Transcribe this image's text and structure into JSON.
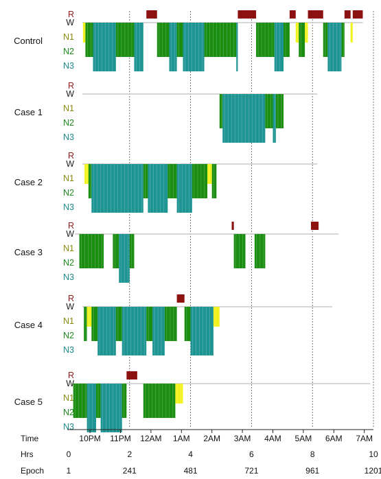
{
  "chart_data": {
    "type": "hypnogram",
    "stage_labels": [
      "R",
      "W",
      "N1",
      "N2",
      "N3"
    ],
    "stage_colors": {
      "R": "#8b1a1a",
      "W": "#222222",
      "N1": "#8a8a10",
      "N2": "#1c8a1c",
      "N3": "#1e8a8a",
      "N1_bar": "#f2f21e",
      "N2_bar": "#1b8e12",
      "N3_bar": "#1f9593",
      "R_bar": "#8c1111"
    },
    "x_axes": {
      "time": {
        "label": "Time",
        "ticks": [
          {
            "label": "10PM",
            "hr": 0.7
          },
          {
            "label": "11PM",
            "hr": 1.7
          },
          {
            "label": "12AM",
            "hr": 2.7
          },
          {
            "label": "1AM",
            "hr": 3.7
          },
          {
            "label": "2AM",
            "hr": 4.7
          },
          {
            "label": "3AM",
            "hr": 5.7
          },
          {
            "label": "4AM",
            "hr": 6.7
          },
          {
            "label": "5AM",
            "hr": 7.7
          },
          {
            "label": "6AM",
            "hr": 8.7
          },
          {
            "label": "7AM",
            "hr": 9.7
          }
        ]
      },
      "hrs": {
        "label": "Hrs",
        "ticks": [
          {
            "label": "0",
            "hr": 0
          },
          {
            "label": "2",
            "hr": 2
          },
          {
            "label": "4",
            "hr": 4
          },
          {
            "label": "6",
            "hr": 6
          },
          {
            "label": "8",
            "hr": 8
          },
          {
            "label": "10",
            "hr": 10
          }
        ]
      },
      "epoch": {
        "label": "Epoch",
        "ticks": [
          {
            "label": "1",
            "hr": 0
          },
          {
            "label": "241",
            "hr": 2
          },
          {
            "label": "481",
            "hr": 4
          },
          {
            "label": "721",
            "hr": 6
          },
          {
            "label": "961",
            "hr": 8
          },
          {
            "label": "1201",
            "hr": 10
          }
        ]
      }
    },
    "gridlines_hr": [
      2,
      4,
      6,
      8,
      10
    ],
    "panels": [
      {
        "name": "Control",
        "record_start_hr": 0.45,
        "record_end_hr": 9.65,
        "segments": [
          {
            "stage": "W",
            "start": 0.45,
            "end": 0.47
          },
          {
            "stage": "N1",
            "start": 0.47,
            "end": 0.55
          },
          {
            "stage": "N2",
            "start": 0.55,
            "end": 0.8
          },
          {
            "stage": "N3",
            "start": 0.8,
            "end": 1.55
          },
          {
            "stage": "N2",
            "start": 1.55,
            "end": 2.15
          },
          {
            "stage": "N3",
            "start": 2.15,
            "end": 2.45
          },
          {
            "stage": "R",
            "start": 2.55,
            "end": 2.9
          },
          {
            "stage": "N2",
            "start": 2.9,
            "end": 3.3
          },
          {
            "stage": "N3",
            "start": 3.3,
            "end": 3.55
          },
          {
            "stage": "N2",
            "start": 3.55,
            "end": 3.75
          },
          {
            "stage": "N3",
            "start": 3.75,
            "end": 4.45
          },
          {
            "stage": "N2",
            "start": 4.45,
            "end": 5.5
          },
          {
            "stage": "N3",
            "start": 5.5,
            "end": 5.55
          },
          {
            "stage": "R",
            "start": 5.55,
            "end": 6.15
          },
          {
            "stage": "N2",
            "start": 6.15,
            "end": 6.75
          },
          {
            "stage": "N3",
            "start": 6.75,
            "end": 7.05
          },
          {
            "stage": "N2",
            "start": 7.05,
            "end": 7.25
          },
          {
            "stage": "R",
            "start": 7.25,
            "end": 7.45
          },
          {
            "stage": "N1",
            "start": 7.45,
            "end": 7.55
          },
          {
            "stage": "N2",
            "start": 7.55,
            "end": 7.75
          },
          {
            "stage": "N1",
            "start": 7.75,
            "end": 7.85
          },
          {
            "stage": "R",
            "start": 7.85,
            "end": 8.35
          },
          {
            "stage": "N2",
            "start": 8.35,
            "end": 8.5
          },
          {
            "stage": "N3",
            "start": 8.5,
            "end": 8.95
          },
          {
            "stage": "N2",
            "start": 8.95,
            "end": 9.05
          },
          {
            "stage": "R",
            "start": 9.05,
            "end": 9.25
          },
          {
            "stage": "N1",
            "start": 9.25,
            "end": 9.32
          },
          {
            "stage": "R",
            "start": 9.32,
            "end": 9.65
          }
        ]
      },
      {
        "name": "Case 1",
        "record_start_hr": 0.45,
        "record_end_hr": 8.15,
        "segments": [
          {
            "stage": "W",
            "start": 0.45,
            "end": 4.95
          },
          {
            "stage": "N2",
            "start": 4.95,
            "end": 5.05
          },
          {
            "stage": "N3",
            "start": 5.05,
            "end": 6.45
          },
          {
            "stage": "N2",
            "start": 6.45,
            "end": 6.7
          },
          {
            "stage": "N3",
            "start": 6.7,
            "end": 6.8
          },
          {
            "stage": "N2",
            "start": 6.8,
            "end": 7.05
          },
          {
            "stage": "W",
            "start": 7.05,
            "end": 8.15
          }
        ]
      },
      {
        "name": "Case 2",
        "record_start_hr": 0.45,
        "record_end_hr": 8.15,
        "segments": [
          {
            "stage": "W",
            "start": 0.45,
            "end": 0.52
          },
          {
            "stage": "N1",
            "start": 0.52,
            "end": 0.65
          },
          {
            "stage": "N2",
            "start": 0.65,
            "end": 0.75
          },
          {
            "stage": "N3",
            "start": 0.75,
            "end": 2.45
          },
          {
            "stage": "N2",
            "start": 2.45,
            "end": 2.6
          },
          {
            "stage": "N3",
            "start": 2.6,
            "end": 3.25
          },
          {
            "stage": "N2",
            "start": 3.25,
            "end": 3.55
          },
          {
            "stage": "N3",
            "start": 3.55,
            "end": 4.05
          },
          {
            "stage": "N2",
            "start": 4.05,
            "end": 4.55
          },
          {
            "stage": "N1",
            "start": 4.55,
            "end": 4.7
          },
          {
            "stage": "N2",
            "start": 4.7,
            "end": 4.85
          },
          {
            "stage": "W",
            "start": 4.85,
            "end": 8.15
          }
        ]
      },
      {
        "name": "Case 3",
        "record_start_hr": 0.2,
        "record_end_hr": 8.85,
        "segments": [
          {
            "stage": "W",
            "start": 0.2,
            "end": 0.35
          },
          {
            "stage": "N2",
            "start": 0.35,
            "end": 1.15
          },
          {
            "stage": "W",
            "start": 1.15,
            "end": 1.45
          },
          {
            "stage": "N2",
            "start": 1.45,
            "end": 1.65
          },
          {
            "stage": "N3",
            "start": 1.65,
            "end": 2.0
          },
          {
            "stage": "N2",
            "start": 2.0,
            "end": 2.15
          },
          {
            "stage": "W",
            "start": 2.15,
            "end": 5.35
          },
          {
            "stage": "R",
            "start": 5.35,
            "end": 5.42
          },
          {
            "stage": "N2",
            "start": 5.42,
            "end": 5.8
          },
          {
            "stage": "W",
            "start": 5.8,
            "end": 6.1
          },
          {
            "stage": "N2",
            "start": 6.1,
            "end": 6.45
          },
          {
            "stage": "W",
            "start": 6.45,
            "end": 7.95
          },
          {
            "stage": "R",
            "start": 7.95,
            "end": 8.2
          },
          {
            "stage": "W",
            "start": 8.2,
            "end": 8.85
          }
        ]
      },
      {
        "name": "Case 4",
        "record_start_hr": 0.45,
        "record_end_hr": 8.65,
        "segments": [
          {
            "stage": "W",
            "start": 0.45,
            "end": 0.5
          },
          {
            "stage": "N2",
            "start": 0.5,
            "end": 0.6
          },
          {
            "stage": "N1",
            "start": 0.6,
            "end": 0.75
          },
          {
            "stage": "N2",
            "start": 0.75,
            "end": 0.95
          },
          {
            "stage": "N3",
            "start": 0.95,
            "end": 1.55
          },
          {
            "stage": "N2",
            "start": 1.55,
            "end": 1.75
          },
          {
            "stage": "N3",
            "start": 1.75,
            "end": 2.55
          },
          {
            "stage": "N2",
            "start": 2.55,
            "end": 2.75
          },
          {
            "stage": "N3",
            "start": 2.75,
            "end": 3.15
          },
          {
            "stage": "N2",
            "start": 3.15,
            "end": 3.55
          },
          {
            "stage": "R",
            "start": 3.55,
            "end": 3.8
          },
          {
            "stage": "N2",
            "start": 3.8,
            "end": 4.0
          },
          {
            "stage": "N3",
            "start": 4.0,
            "end": 4.75
          },
          {
            "stage": "N1",
            "start": 4.75,
            "end": 4.95
          },
          {
            "stage": "W",
            "start": 4.95,
            "end": 8.65
          }
        ]
      },
      {
        "name": "Case 5",
        "record_start_hr": 0.15,
        "record_end_hr": 9.9,
        "segments": [
          {
            "stage": "N2",
            "start": 0.15,
            "end": 0.6
          },
          {
            "stage": "N3",
            "start": 0.6,
            "end": 0.9
          },
          {
            "stage": "N2",
            "start": 0.9,
            "end": 1.05
          },
          {
            "stage": "N3",
            "start": 1.05,
            "end": 1.75
          },
          {
            "stage": "N2",
            "start": 1.75,
            "end": 1.9
          },
          {
            "stage": "R",
            "start": 1.9,
            "end": 2.25
          },
          {
            "stage": "W",
            "start": 2.25,
            "end": 2.45
          },
          {
            "stage": "N2",
            "start": 2.45,
            "end": 3.5
          },
          {
            "stage": "N1",
            "start": 3.5,
            "end": 3.75
          },
          {
            "stage": "W",
            "start": 3.75,
            "end": 9.9
          }
        ]
      }
    ]
  }
}
